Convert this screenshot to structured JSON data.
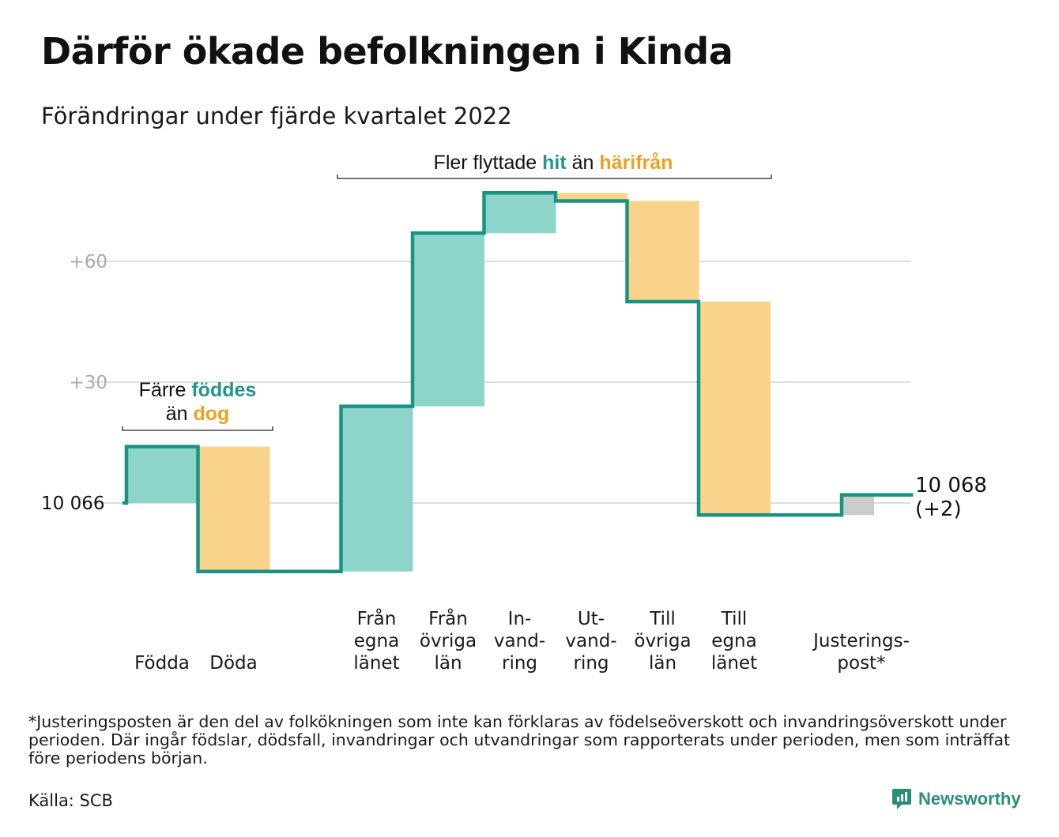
{
  "title": "Därför ökade befolkningen i Kinda",
  "subtitle": "Förändringar under fjärde kvartalet 2022",
  "footnote": "*Justeringsposten är den del av folkökningen som inte kan förklaras av födelseöverskott och invandringsöverskott under perioden. Där ingår födslar, dödsfall, invandringar och utvandringar som rapporterats under perioden, men som inträffat före periodens början.",
  "source": "Källa: SCB",
  "brand": "Newsworthy",
  "colors": {
    "increase": "#8dd5cb",
    "decrease": "#f9d38b",
    "adjustment": "#cccccc",
    "line": "#1a9482",
    "teal_text": "#21968a",
    "orange_text": "#f0a020",
    "grid": "#dddddd"
  },
  "annotations": {
    "births_deaths": {
      "line1_pre": "Färre ",
      "line1_hl": "föddes",
      "line2_pre": "än ",
      "line2_hl": "dog"
    },
    "migration": {
      "pre": "Fler flyttade ",
      "hl1": "hit",
      "mid": " än ",
      "hl2": "härifrån"
    }
  },
  "chart_data": {
    "type": "waterfall",
    "start_label": "10 066",
    "end_label": [
      "10 068",
      "(+2)"
    ],
    "y_ticks": [
      {
        "value": 0,
        "label": "10 066"
      },
      {
        "value": 30,
        "label": "+30"
      },
      {
        "value": 60,
        "label": "+60"
      }
    ],
    "ylim": [
      -20,
      80
    ],
    "grid": true,
    "steps": [
      {
        "category": [
          "Födda"
        ],
        "change": 14,
        "kind": "increase"
      },
      {
        "category": [
          "Döda"
        ],
        "change": -31,
        "kind": "decrease"
      },
      {
        "category": [],
        "change": 0,
        "kind": "gap"
      },
      {
        "category": [
          "Från",
          "egna",
          "länet"
        ],
        "change": 41,
        "kind": "increase"
      },
      {
        "category": [
          "Från",
          "övriga",
          "län"
        ],
        "change": 43,
        "kind": "increase"
      },
      {
        "category": [
          "In-",
          "vand-",
          "ring"
        ],
        "change": 10,
        "kind": "increase"
      },
      {
        "category": [
          "Ut-",
          "vand-",
          "ring"
        ],
        "change": -2,
        "kind": "decrease"
      },
      {
        "category": [
          "Till",
          "övriga",
          "län"
        ],
        "change": -25,
        "kind": "decrease"
      },
      {
        "category": [
          "Till",
          "egna",
          "länet"
        ],
        "change": -53,
        "kind": "decrease"
      },
      {
        "category": [],
        "change": 0,
        "kind": "gap"
      },
      {
        "category": [
          "Justerings-",
          "post*"
        ],
        "change": 5,
        "kind": "adjustment"
      }
    ]
  }
}
